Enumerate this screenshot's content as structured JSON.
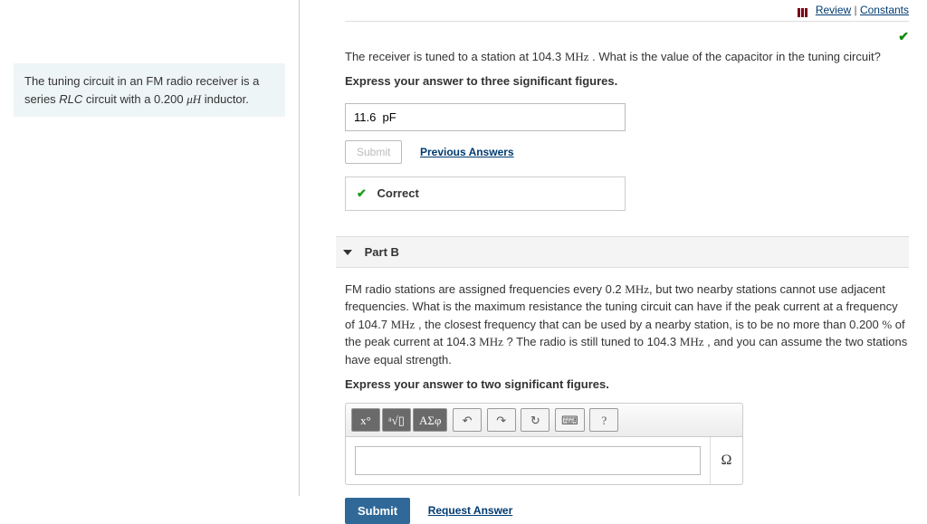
{
  "topLinks": {
    "review": "Review",
    "constants": "Constants",
    "separator": " | "
  },
  "context": {
    "prefix": "The tuning circuit in an FM radio receiver is a series ",
    "rlc": "RLC",
    "mid": " circuit with a 0.200 ",
    "unit": "μH",
    "suffix": " inductor."
  },
  "partA": {
    "q1": "The receiver is tuned to a station at 104.3 ",
    "mhz": "MHz",
    "q2": " . What is the value of the capacitor in the tuning circuit?",
    "instr": "Express your answer to three significant figures.",
    "answerValue": "11.6  pF",
    "submitLabel": "Submit",
    "prevLabel": "Previous Answers",
    "correctLabel": "Correct"
  },
  "partB": {
    "header": "Part B",
    "p1": "FM radio stations are assigned frequencies every 0.2 ",
    "mhz": "MHz",
    "p2": ", but two nearby stations cannot use adjacent frequencies. What is the maximum resistance the tuning circuit can have if the peak current at a frequency of 104.7 ",
    "p3": " , the closest frequency that can be used by a nearby station, is to be no more than 0.200 ",
    "pct": "%",
    "p4": " of the peak current at 104.3 ",
    "p5": " ? The radio is still tuned to 104.3 ",
    "p6": " , and you can assume the two stations have equal strength.",
    "instr": "Express your answer to two significant figures.",
    "unit": "Ω",
    "submitLabel": "Submit",
    "requestLabel": "Request Answer"
  },
  "toolbar": {
    "t1": "x°",
    "t2": "ᵃ√▯",
    "t3": "ΑΣφ",
    "undo": "↶",
    "redo": "↷",
    "reset": "↻",
    "keyboard": "⌨",
    "help": "?"
  }
}
